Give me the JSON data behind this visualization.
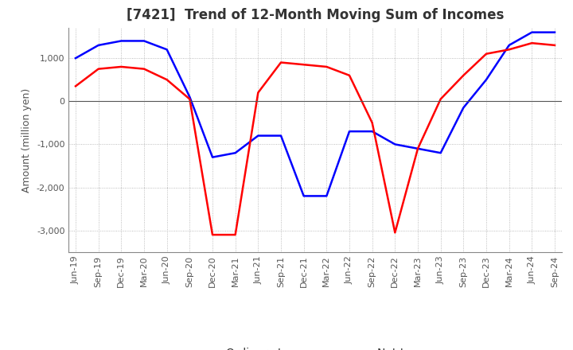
{
  "title": "[7421]  Trend of 12-Month Moving Sum of Incomes",
  "ylabel": "Amount (million yen)",
  "ylim": [
    -3500,
    1700
  ],
  "yticks": [
    -3000,
    -2000,
    -1000,
    0,
    1000
  ],
  "x_labels": [
    "Jun-19",
    "Sep-19",
    "Dec-19",
    "Mar-20",
    "Jun-20",
    "Sep-20",
    "Dec-20",
    "Mar-21",
    "Jun-21",
    "Sep-21",
    "Dec-21",
    "Mar-22",
    "Jun-22",
    "Sep-22",
    "Dec-22",
    "Mar-23",
    "Jun-23",
    "Sep-23",
    "Dec-23",
    "Mar-24",
    "Jun-24",
    "Sep-24"
  ],
  "ordinary_income": [
    1000,
    1300,
    1400,
    1400,
    1200,
    100,
    -1300,
    -1200,
    -800,
    -800,
    -2200,
    -2200,
    -700,
    -700,
    -1000,
    -1100,
    -1200,
    -150,
    500,
    1300,
    1600,
    1600
  ],
  "net_income": [
    350,
    750,
    800,
    750,
    500,
    50,
    -3100,
    -3100,
    200,
    900,
    850,
    800,
    600,
    -500,
    -3050,
    -1100,
    50,
    600,
    1100,
    1200,
    1350,
    1300
  ],
  "ordinary_color": "#0000ff",
  "net_color": "#ff0000",
  "grid_color": "#aaaaaa",
  "background_color": "#ffffff",
  "title_fontsize": 12,
  "axis_fontsize": 9,
  "tick_fontsize": 8,
  "legend_fontsize": 10
}
